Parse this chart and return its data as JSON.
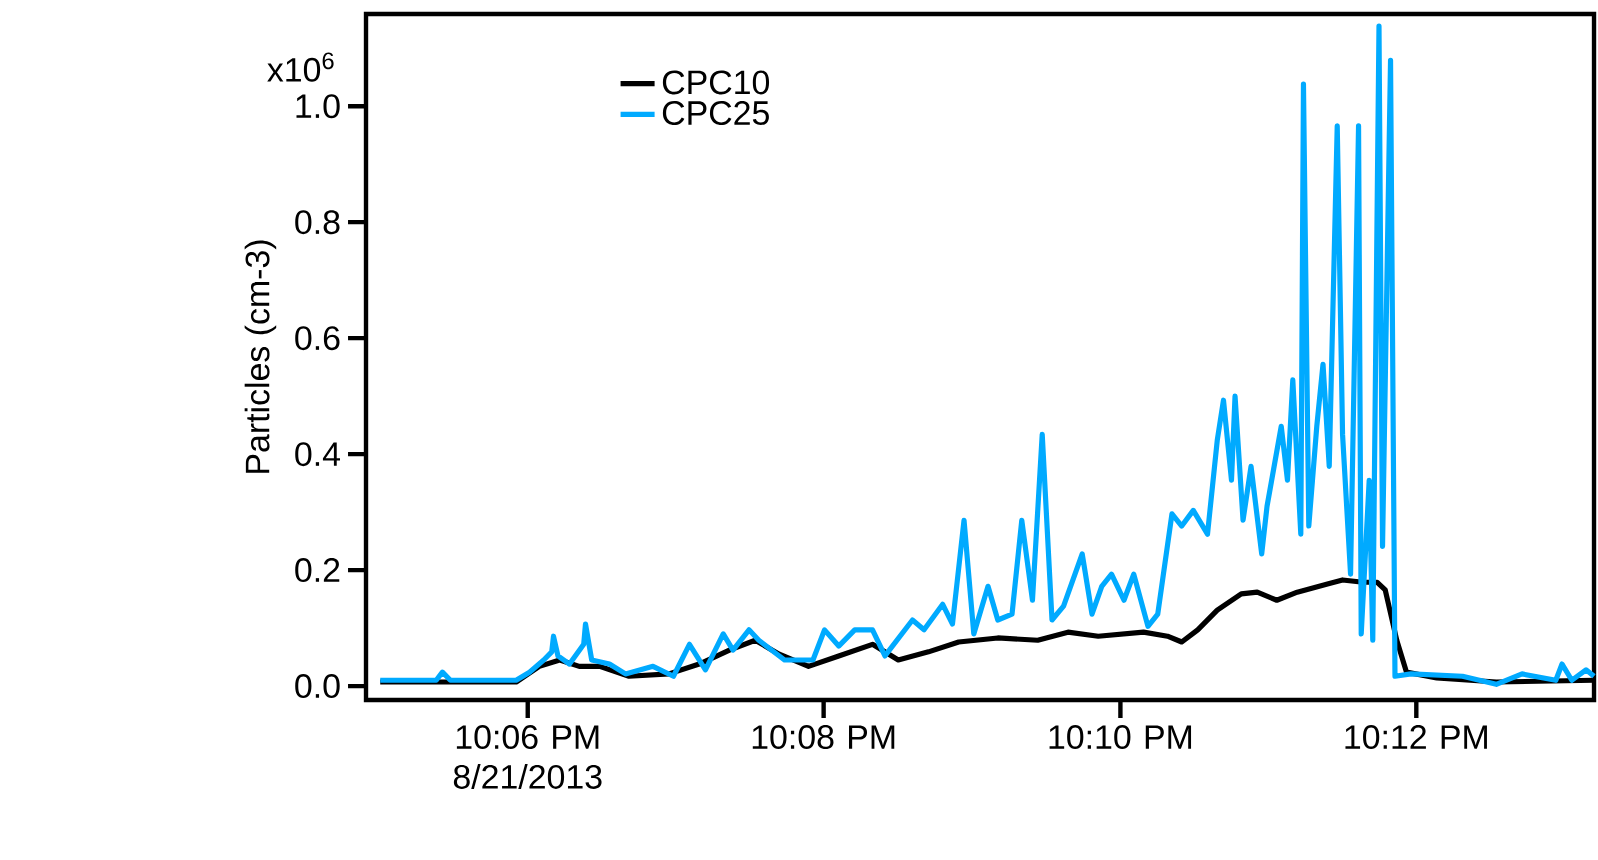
{
  "chart_data": {
    "type": "line",
    "ylabel": "Particles (cm-3)",
    "xlim": [
      22.0818,
      22.22
    ],
    "ylim": [
      -0.024,
      1.159
    ],
    "xticks": [
      {
        "value": 22.1,
        "label": "10:06 PM 8/21/2013"
      },
      {
        "value": 22.1333,
        "label": "10:08 PM"
      },
      {
        "value": 22.1667,
        "label": "10:10 PM"
      },
      {
        "value": 22.2,
        "label": "10:12 PM"
      }
    ],
    "yticks": [
      {
        "value": 0,
        "label": "0.0"
      },
      {
        "value": 0.2,
        "label": "0.2"
      },
      {
        "value": 0.4,
        "label": "0.4"
      },
      {
        "value": 0.6,
        "label": "0.6"
      },
      {
        "value": 0.8,
        "label": "0.8"
      },
      {
        "value": 1.0,
        "label": "1.0"
      }
    ],
    "annotations": [
      "x10$^{6}$"
    ],
    "legend": "top left",
    "grid": false,
    "series": [
      {
        "name": "CPC10",
        "color": "#000000",
        "x": [
          22.0834,
          22.0987,
          22.1013,
          22.1036,
          22.1058,
          22.1081,
          22.1114,
          22.1159,
          22.1193,
          22.1227,
          22.1256,
          22.1283,
          22.1316,
          22.135,
          22.1388,
          22.1417,
          22.1451,
          22.1485,
          22.1529,
          22.1574,
          22.1608,
          22.1642,
          22.1693,
          22.172,
          22.1736,
          22.1754,
          22.1776,
          22.1803,
          22.1821,
          22.1843,
          22.1866,
          22.19,
          22.1917,
          22.194,
          22.1956,
          22.1965,
          22.1978,
          22.1989,
          22.2023,
          22.209,
          22.22
        ],
        "values": [
          0.007,
          0.007,
          0.034,
          0.045,
          0.034,
          0.034,
          0.017,
          0.021,
          0.038,
          0.062,
          0.079,
          0.055,
          0.034,
          0.052,
          0.072,
          0.045,
          0.059,
          0.076,
          0.083,
          0.079,
          0.093,
          0.086,
          0.093,
          0.086,
          0.076,
          0.097,
          0.131,
          0.159,
          0.162,
          0.148,
          0.162,
          0.176,
          0.183,
          0.179,
          0.179,
          0.166,
          0.079,
          0.024,
          0.014,
          0.007,
          0.01
        ]
      },
      {
        "name": "CPC25",
        "color": "#00aaff",
        "x": [
          22.0834,
          22.0897,
          22.0904,
          22.0913,
          22.0987,
          22.1002,
          22.1018,
          22.1027,
          22.1029,
          22.1034,
          22.1047,
          22.1063,
          22.1065,
          22.1072,
          22.1092,
          22.111,
          22.1141,
          22.1164,
          22.1182,
          22.12,
          22.122,
          22.1231,
          22.1249,
          22.126,
          22.1289,
          22.1321,
          22.1334,
          22.135,
          22.1368,
          22.1388,
          22.1402,
          22.1433,
          22.1446,
          22.1467,
          22.1478,
          22.1491,
          22.1502,
          22.1518,
          22.1529,
          22.1545,
          22.1556,
          22.1568,
          22.1579,
          22.159,
          22.1603,
          22.1624,
          22.1635,
          22.1646,
          22.1657,
          22.1671,
          22.1682,
          22.1698,
          22.1709,
          22.1725,
          22.1736,
          22.1749,
          22.1765,
          22.1776,
          22.1783,
          22.1792,
          22.1796,
          22.1805,
          22.1814,
          22.1826,
          22.1832,
          22.1848,
          22.1855,
          22.1861,
          22.187,
          22.1873,
          22.1879,
          22.1888,
          22.1895,
          22.1902,
          22.1911,
          22.1917,
          22.1926,
          22.1935,
          22.1938,
          22.1947,
          22.1951,
          22.1958,
          22.1962,
          22.1971,
          22.1976,
          22.1994,
          22.2052,
          22.209,
          22.2119,
          22.2157,
          22.2164,
          22.2175,
          22.2191,
          22.22
        ],
        "values": [
          0.01,
          0.01,
          0.024,
          0.01,
          0.01,
          0.024,
          0.045,
          0.059,
          0.086,
          0.052,
          0.038,
          0.072,
          0.107,
          0.045,
          0.038,
          0.021,
          0.034,
          0.017,
          0.072,
          0.028,
          0.09,
          0.062,
          0.097,
          0.079,
          0.045,
          0.045,
          0.097,
          0.069,
          0.097,
          0.097,
          0.052,
          0.114,
          0.097,
          0.141,
          0.107,
          0.286,
          0.09,
          0.172,
          0.114,
          0.124,
          0.286,
          0.148,
          0.434,
          0.114,
          0.138,
          0.228,
          0.124,
          0.172,
          0.193,
          0.148,
          0.193,
          0.103,
          0.124,
          0.297,
          0.276,
          0.303,
          0.262,
          0.424,
          0.493,
          0.355,
          0.5,
          0.286,
          0.379,
          0.228,
          0.31,
          0.448,
          0.355,
          0.528,
          0.262,
          1.038,
          0.276,
          0.448,
          0.555,
          0.379,
          0.966,
          0.434,
          0.193,
          0.966,
          0.09,
          0.355,
          0.079,
          1.138,
          0.241,
          1.079,
          0.017,
          0.021,
          0.017,
          0.003,
          0.021,
          0.01,
          0.038,
          0.01,
          0.028,
          0.017
        ]
      }
    ]
  }
}
